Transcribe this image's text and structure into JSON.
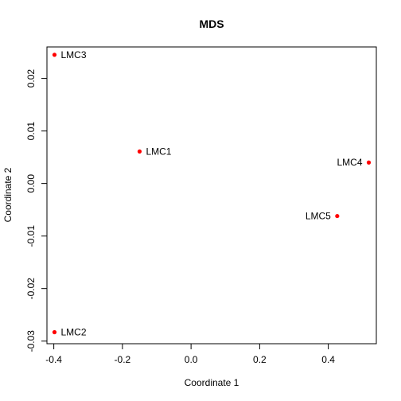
{
  "chart_data": {
    "type": "scatter",
    "title": "MDS",
    "xlabel": "Coordinate 1",
    "ylabel": "Coordinate 2",
    "xlim": [
      -0.42,
      0.54
    ],
    "ylim": [
      -0.0305,
      0.026
    ],
    "x_ticks": [
      -0.4,
      -0.2,
      0.0,
      0.2,
      0.4
    ],
    "x_tick_labels": [
      "-0.4",
      "-0.2",
      "0.0",
      "0.2",
      "0.4"
    ],
    "y_ticks": [
      -0.03,
      -0.02,
      -0.01,
      0.0,
      0.01,
      0.02
    ],
    "y_tick_labels": [
      "-0.03",
      "-0.02",
      "-0.01",
      "0.00",
      "0.01",
      "0.02"
    ],
    "grid": false,
    "legend": "none",
    "point_color": "#ff0000",
    "points": [
      {
        "label": "LMC1",
        "x": -0.15,
        "y": 0.0061,
        "label_side": "right"
      },
      {
        "label": "LMC2",
        "x": -0.398,
        "y": -0.0283,
        "label_side": "right"
      },
      {
        "label": "LMC3",
        "x": -0.398,
        "y": 0.0245,
        "label_side": "right"
      },
      {
        "label": "LMC4",
        "x": 0.518,
        "y": 0.004,
        "label_side": "left"
      },
      {
        "label": "LMC5",
        "x": 0.426,
        "y": -0.0062,
        "label_side": "left"
      }
    ]
  }
}
